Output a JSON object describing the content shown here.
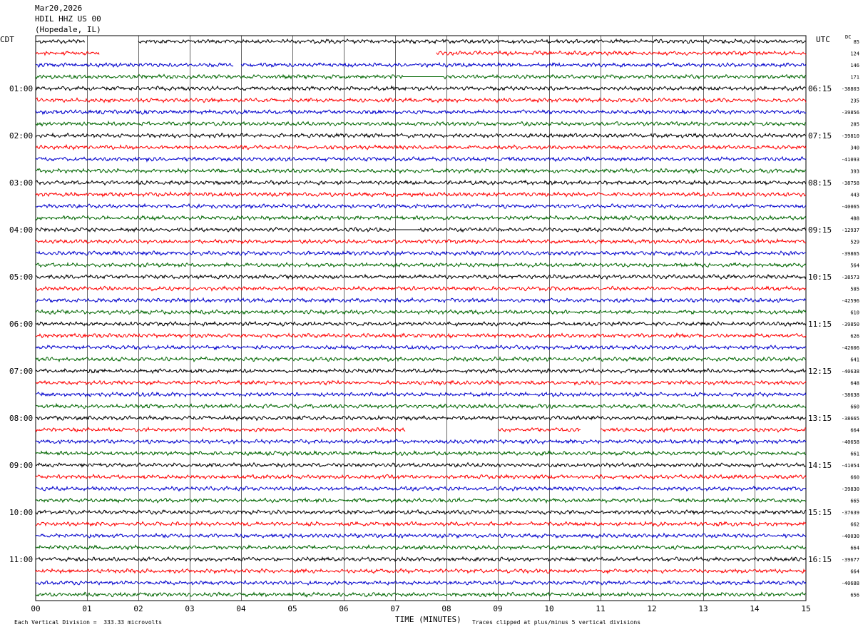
{
  "header": {
    "date": "Mar20,2026",
    "station": "HDIL HHZ US 00",
    "location": "(Hopedale, IL)"
  },
  "left_zone_label": "CDT",
  "right_zone_label": "UTC",
  "dc_label": "DC",
  "footer": {
    "division": "Each Vertical Division =  333.33 microvolts",
    "time_label": "TIME (MINUTES)",
    "clip_note": "Traces clipped at plus/minus 5 vertical divisions"
  },
  "colors": {
    "trace_cycle": [
      "#000000",
      "#ff0000",
      "#0000cc",
      "#006600"
    ],
    "grid": "#000000"
  },
  "chart_data": {
    "type": "line",
    "xlabel": "TIME (MINUTES)",
    "xlim": [
      0,
      15
    ],
    "x_ticks": [
      "00",
      "01",
      "02",
      "03",
      "04",
      "05",
      "06",
      "07",
      "08",
      "09",
      "10",
      "11",
      "12",
      "13",
      "14",
      "15"
    ],
    "trace_count": 48,
    "left_hour_labels": [
      "01:00",
      "02:00",
      "03:00",
      "04:00",
      "05:00",
      "06:00",
      "07:00",
      "08:00",
      "09:00",
      "10:00",
      "11:00"
    ],
    "right_hour_labels": [
      "06:15",
      "07:15",
      "08:15",
      "09:15",
      "10:15",
      "11:15",
      "12:15",
      "13:15",
      "14:15",
      "15:15",
      "16:15"
    ],
    "dc_offsets": [
      "85",
      "124",
      "146",
      "171",
      "-38803",
      "235",
      "-39856",
      "285",
      "-39810",
      "340",
      "-41093",
      "393",
      "-38758",
      "443",
      "-40065",
      "488",
      "-12937",
      "529",
      "-39865",
      "564",
      "-38573",
      "585",
      "-42596",
      "610",
      "-39850",
      "626",
      "-42606",
      "641",
      "-40638",
      "648",
      "-38638",
      "660",
      "-38665",
      "664",
      "-40658",
      "661",
      "-41054",
      "660",
      "-39830",
      "665",
      "-37639",
      "662",
      "-40030",
      "664",
      "-39677",
      "664",
      "-40688",
      "656"
    ],
    "gaps": [
      {
        "trace": 0,
        "from": 0.97,
        "to": 2.0
      },
      {
        "trace": 1,
        "from": 1.25,
        "to": 7.8
      },
      {
        "trace": 2,
        "from": 3.85,
        "to": 4.0
      },
      {
        "trace": 3,
        "from": 7.15,
        "to": 7.95,
        "flat": true
      },
      {
        "trace": 16,
        "from": 7.0,
        "to": 7.45,
        "flat": true
      },
      {
        "trace": 33,
        "from": 7.2,
        "to": 9.0
      },
      {
        "trace": 33,
        "from": 10.62,
        "to": 11.0
      }
    ]
  }
}
